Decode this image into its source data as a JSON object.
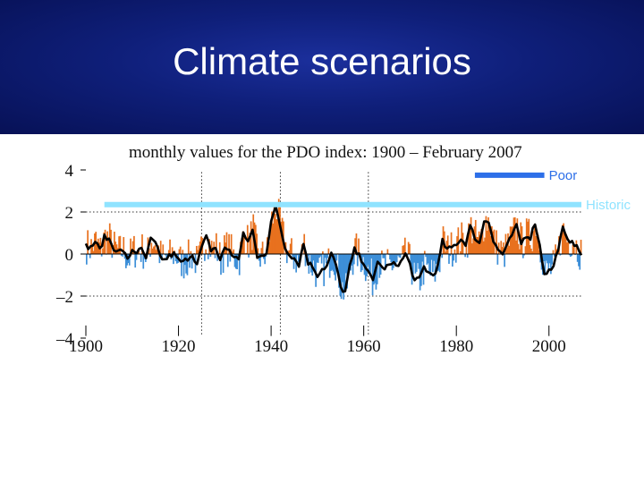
{
  "slide": {
    "title": "Climate scenarios"
  },
  "colors": {
    "positive": "#e8711e",
    "negative": "#3d8fd8",
    "smooth": "#000000",
    "poor": "#2d6fe8",
    "historic": "#8fe3ff",
    "banner": "#0f1f7a"
  },
  "chart_data": {
    "type": "bar",
    "title": "monthly values for the PDO index: 1900 – February 2007",
    "xlabel": "",
    "ylabel": "",
    "xlim": [
      1900,
      2007
    ],
    "ylim": [
      -4,
      4
    ],
    "x_ticks": [
      1900,
      1920,
      1940,
      1960,
      1980,
      2000
    ],
    "y_ticks": [
      {
        "v": 4,
        "label": "4"
      },
      {
        "v": 2,
        "label": "2"
      },
      {
        "v": 0,
        "label": "0"
      },
      {
        "v": -2,
        "label": "–2"
      },
      {
        "v": -4,
        "label": "–4"
      }
    ],
    "reference_lines_y": [
      2.0,
      -2.0
    ],
    "reference_lines_x": [
      1925,
      1942,
      1961
    ],
    "legend": [
      {
        "name": "Poor",
        "y": 3.75,
        "x_start": 1984,
        "x_end": 1999
      },
      {
        "name": "Historic",
        "y": 2.35,
        "x_start": 1904,
        "x_end": 2007
      }
    ],
    "yearly_values": [
      [
        1900,
        0.4
      ],
      [
        1901,
        0.3
      ],
      [
        1902,
        0.6
      ],
      [
        1903,
        0.2
      ],
      [
        1904,
        0.8
      ],
      [
        1905,
        0.7
      ],
      [
        1906,
        0.3
      ],
      [
        1907,
        0.1
      ],
      [
        1908,
        0.2
      ],
      [
        1909,
        -0.3
      ],
      [
        1910,
        0.2
      ],
      [
        1911,
        0.1
      ],
      [
        1912,
        0.2
      ],
      [
        1913,
        -0.2
      ],
      [
        1914,
        0.7
      ],
      [
        1915,
        0.5
      ],
      [
        1916,
        -0.1
      ],
      [
        1917,
        -0.3
      ],
      [
        1918,
        -0.1
      ],
      [
        1919,
        0.0
      ],
      [
        1920,
        -0.3
      ],
      [
        1921,
        -0.4
      ],
      [
        1922,
        -0.2
      ],
      [
        1923,
        0.0
      ],
      [
        1924,
        -0.5
      ],
      [
        1925,
        0.3
      ],
      [
        1926,
        0.8
      ],
      [
        1927,
        0.2
      ],
      [
        1928,
        0.3
      ],
      [
        1929,
        -0.3
      ],
      [
        1930,
        0.3
      ],
      [
        1931,
        0.2
      ],
      [
        1932,
        -0.2
      ],
      [
        1933,
        -0.2
      ],
      [
        1934,
        1.0
      ],
      [
        1935,
        0.5
      ],
      [
        1936,
        1.2
      ],
      [
        1937,
        -0.2
      ],
      [
        1938,
        -0.1
      ],
      [
        1939,
        0.1
      ],
      [
        1940,
        1.6
      ],
      [
        1941,
        2.2
      ],
      [
        1942,
        1.3
      ],
      [
        1943,
        0.3
      ],
      [
        1944,
        0.0
      ],
      [
        1945,
        -0.2
      ],
      [
        1946,
        -0.5
      ],
      [
        1947,
        0.5
      ],
      [
        1948,
        -0.4
      ],
      [
        1949,
        -0.6
      ],
      [
        1950,
        -1.0
      ],
      [
        1951,
        -0.7
      ],
      [
        1952,
        -0.6
      ],
      [
        1953,
        0.0
      ],
      [
        1954,
        -0.5
      ],
      [
        1955,
        -1.6
      ],
      [
        1956,
        -1.8
      ],
      [
        1957,
        -0.6
      ],
      [
        1958,
        0.2
      ],
      [
        1959,
        -0.1
      ],
      [
        1960,
        -0.4
      ],
      [
        1961,
        -0.9
      ],
      [
        1962,
        -1.3
      ],
      [
        1963,
        -0.3
      ],
      [
        1964,
        -0.7
      ],
      [
        1965,
        -0.6
      ],
      [
        1966,
        -0.5
      ],
      [
        1967,
        -0.5
      ],
      [
        1968,
        -0.4
      ],
      [
        1969,
        0.0
      ],
      [
        1970,
        -0.5
      ],
      [
        1971,
        -1.3
      ],
      [
        1972,
        -1.2
      ],
      [
        1973,
        -0.6
      ],
      [
        1974,
        -0.9
      ],
      [
        1975,
        -1.0
      ],
      [
        1976,
        -0.6
      ],
      [
        1977,
        0.6
      ],
      [
        1978,
        0.2
      ],
      [
        1979,
        0.3
      ],
      [
        1980,
        0.5
      ],
      [
        1981,
        0.7
      ],
      [
        1982,
        0.5
      ],
      [
        1983,
        1.3
      ],
      [
        1984,
        0.8
      ],
      [
        1985,
        0.5
      ],
      [
        1986,
        1.6
      ],
      [
        1987,
        1.6
      ],
      [
        1988,
        0.6
      ],
      [
        1989,
        0.2
      ],
      [
        1990,
        0.0
      ],
      [
        1991,
        0.4
      ],
      [
        1992,
        0.9
      ],
      [
        1993,
        1.3
      ],
      [
        1994,
        0.5
      ],
      [
        1995,
        0.9
      ],
      [
        1996,
        0.8
      ],
      [
        1997,
        1.5
      ],
      [
        1998,
        0.4
      ],
      [
        1999,
        -0.9
      ],
      [
        2000,
        -0.8
      ],
      [
        2001,
        -0.6
      ],
      [
        2002,
        0.3
      ],
      [
        2003,
        1.2
      ],
      [
        2004,
        0.6
      ],
      [
        2005,
        0.7
      ],
      [
        2006,
        0.3
      ],
      [
        2007,
        0.0
      ]
    ]
  }
}
